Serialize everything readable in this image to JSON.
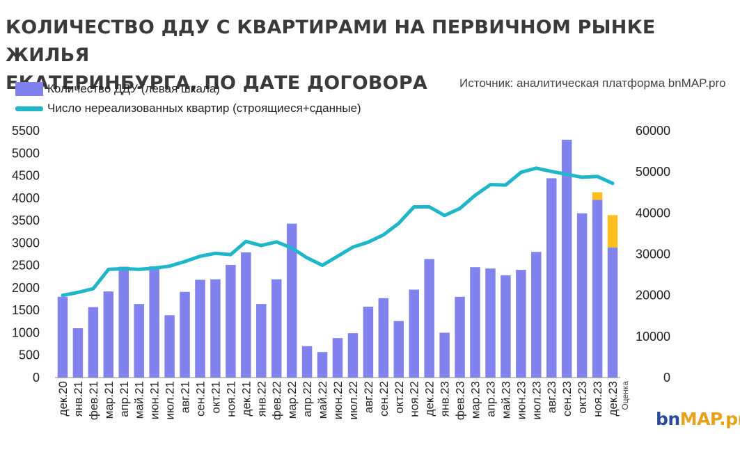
{
  "title_line1": "КОЛИЧЕСТВО ДДУ С КВАРТИРАМИ НА ПЕРВИЧНОМ РЫНКЕ ЖИЛЬЯ",
  "title_line2": "ЕКАТЕРИНБУРГА, ПО ДАТЕ ДОГОВОРА",
  "source": "Источник: аналитическая платформа bnMAP.pro",
  "logo": {
    "part1": "bn",
    "part2": "MAP",
    "part3": ".pro"
  },
  "colors": {
    "bar": "#8282ee",
    "estimate": "#ffbf1e",
    "line": "#1fb6c9"
  },
  "chart_data": {
    "type": "bar",
    "categories": [
      "дек.20",
      "янв.21",
      "фев.21",
      "мар.21",
      "апр.21",
      "май.21",
      "июн.21",
      "июл.21",
      "авг.21",
      "сен.21",
      "окт.21",
      "ноя.21",
      "дек.21",
      "янв.22",
      "фев.22",
      "мар.22",
      "апр.22",
      "май.22",
      "июн.22",
      "июл.22",
      "авг.22",
      "сен.22",
      "окт.22",
      "ноя.22",
      "дек.22",
      "янв.23",
      "фев.23",
      "мар.23",
      "апр.23",
      "май.23",
      "июн.23",
      "июл.23",
      "авг.23",
      "сен.23",
      "окт.23",
      "ноя.23",
      "дек.23"
    ],
    "series": [
      {
        "name": "Количество ДДУ (левая шкала)",
        "axis": "left",
        "kind": "bar",
        "values": [
          1800,
          1100,
          1570,
          1920,
          2470,
          1640,
          2480,
          1390,
          1910,
          2180,
          2190,
          2510,
          2790,
          1640,
          2190,
          3430,
          700,
          570,
          880,
          990,
          1580,
          1770,
          1260,
          1960,
          2640,
          1000,
          1800,
          2460,
          2430,
          2280,
          2400,
          2800,
          4440,
          5300,
          3660,
          3960,
          2900
        ]
      },
      {
        "name": "Оценка",
        "axis": "left",
        "kind": "bar-stack",
        "values": [
          0,
          0,
          0,
          0,
          0,
          0,
          0,
          0,
          0,
          0,
          0,
          0,
          0,
          0,
          0,
          0,
          0,
          0,
          0,
          0,
          0,
          0,
          0,
          0,
          0,
          0,
          0,
          0,
          0,
          0,
          0,
          0,
          0,
          0,
          0,
          170,
          720
        ]
      },
      {
        "name": "Число нереализованных квартир (строящиеся+сданные)",
        "axis": "right",
        "kind": "line",
        "values": [
          20000,
          20700,
          21600,
          26300,
          26500,
          26300,
          26600,
          27100,
          28200,
          29500,
          30200,
          29900,
          33100,
          32100,
          33000,
          31500,
          29100,
          27300,
          29500,
          31700,
          32900,
          34700,
          37500,
          41500,
          41500,
          39400,
          41100,
          44300,
          46900,
          46800,
          49900,
          50900,
          50100,
          49400,
          48700,
          48900,
          47200
        ]
      }
    ],
    "ylim_left": [
      0,
      5500
    ],
    "yticks_left": [
      0,
      500,
      1000,
      1500,
      2000,
      2500,
      3000,
      3500,
      4000,
      4500,
      5000,
      5500
    ],
    "ylim_right": [
      0,
      60000
    ],
    "yticks_right": [
      0,
      10000,
      20000,
      30000,
      40000,
      50000,
      60000
    ],
    "estimate_label": "Оценка",
    "legend_position": "top-left",
    "grid": false
  }
}
